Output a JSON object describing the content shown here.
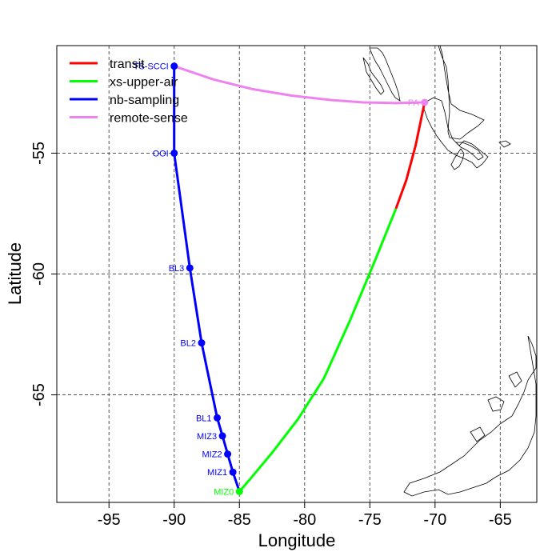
{
  "chart_data": {
    "type": "line",
    "xlabel": "Longitude",
    "ylabel": "Latitude",
    "xlim": [
      -99,
      -62.2
    ],
    "ylim": [
      -69.45,
      -50.55
    ],
    "xticks": [
      -95,
      -90,
      -85,
      -80,
      -75,
      -70,
      -65
    ],
    "yticks": [
      -55,
      -60,
      -65
    ],
    "grid": true,
    "legend_position": "top-left",
    "series": [
      {
        "name": "transit",
        "color": "#ff0000",
        "x": [
          -70.8,
          -71.5,
          -72.2,
          -73.0
        ],
        "y": [
          -52.9,
          -54.7,
          -56.1,
          -57.3
        ]
      },
      {
        "name": "xs-upper-air",
        "color": "#00ff00",
        "x": [
          -73.0,
          -74.5,
          -76.5,
          -78.5,
          -80.5,
          -82.5,
          -84.2,
          -85.0
        ],
        "y": [
          -57.3,
          -59.3,
          -61.9,
          -64.3,
          -66.0,
          -67.4,
          -68.5,
          -69.0
        ]
      },
      {
        "name": "nb-sampling",
        "color": "#0000ff",
        "x": [
          -85.0,
          -85.5,
          -85.9,
          -86.3,
          -86.7,
          -87.9,
          -88.8,
          -90.0,
          -90.0
        ],
        "y": [
          -69.0,
          -68.2,
          -67.45,
          -66.7,
          -65.95,
          -62.85,
          -59.75,
          -55.0,
          -51.4
        ]
      },
      {
        "name": "remote-sense",
        "color": "#ee82ee",
        "x": [
          -90.0,
          -87.0,
          -84.0,
          -81.0,
          -78.0,
          -75.5,
          -73.0,
          -70.8
        ],
        "y": [
          -51.4,
          -51.95,
          -52.35,
          -52.62,
          -52.8,
          -52.9,
          -52.93,
          -52.9
        ]
      }
    ],
    "points": [
      {
        "label": "MIZ0",
        "x": -85.0,
        "y": -69.0,
        "color": "#00ff00"
      },
      {
        "label": "MIZ1",
        "x": -85.5,
        "y": -68.2,
        "color": "#0000ff"
      },
      {
        "label": "MIZ2",
        "x": -85.9,
        "y": -67.45,
        "color": "#0000ff"
      },
      {
        "label": "MIZ3",
        "x": -86.3,
        "y": -66.7,
        "color": "#0000ff"
      },
      {
        "label": "BL1",
        "x": -86.7,
        "y": -65.95,
        "color": "#0000ff"
      },
      {
        "label": "BL2",
        "x": -87.9,
        "y": -62.85,
        "color": "#0000ff"
      },
      {
        "label": "BL3",
        "x": -88.8,
        "y": -59.75,
        "color": "#0000ff"
      },
      {
        "label": "OOI",
        "x": -90.0,
        "y": -55.0,
        "color": "#0000ff"
      },
      {
        "label": "TS-SCCI",
        "x": -90.0,
        "y": -51.4,
        "color": "#0000ff"
      },
      {
        "label": "PA",
        "x": -70.8,
        "y": -52.9,
        "color": "#ee82ee"
      }
    ]
  }
}
